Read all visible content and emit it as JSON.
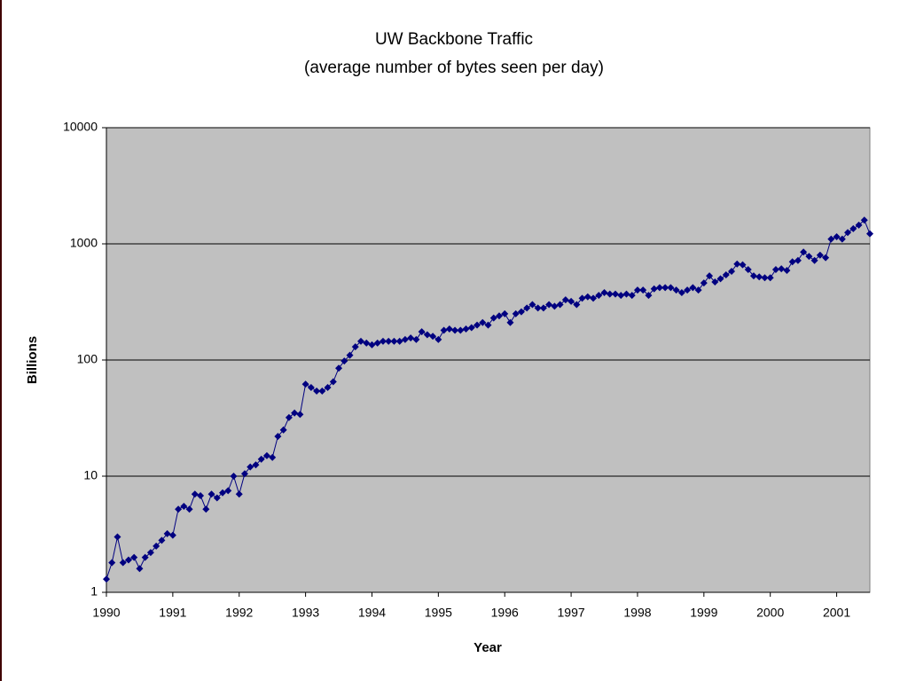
{
  "chart_data": {
    "type": "line",
    "title": "UW Backbone Traffic",
    "subtitle": "(average number of bytes seen per day)",
    "x_label": "Year",
    "y_label": "Billions",
    "log_y": true,
    "grid": true,
    "color": "#000080",
    "ylim": [
      1,
      10000
    ],
    "yticks": [
      1,
      10,
      100,
      1000,
      10000
    ],
    "categories": [
      "1990",
      null,
      null,
      null,
      null,
      null,
      null,
      null,
      null,
      null,
      null,
      null,
      "1991",
      null,
      null,
      null,
      null,
      null,
      null,
      null,
      null,
      null,
      null,
      null,
      "1992",
      null,
      null,
      null,
      null,
      null,
      null,
      null,
      null,
      null,
      null,
      null,
      "1993",
      null,
      null,
      null,
      null,
      null,
      null,
      null,
      null,
      null,
      null,
      null,
      "1994",
      null,
      null,
      null,
      null,
      null,
      null,
      null,
      null,
      null,
      null,
      null,
      "1995",
      null,
      null,
      null,
      null,
      null,
      null,
      null,
      null,
      null,
      null,
      null,
      "1996",
      null,
      null,
      null,
      null,
      null,
      null,
      null,
      null,
      null,
      null,
      null,
      "1997",
      null,
      null,
      null,
      null,
      null,
      null,
      null,
      null,
      null,
      null,
      null,
      "1998",
      null,
      null,
      null,
      null,
      null,
      null,
      null,
      null,
      null,
      null,
      null,
      "1999",
      null,
      null,
      null,
      null,
      null,
      null,
      null,
      null,
      null,
      null,
      null,
      "2000",
      null,
      null,
      null,
      null,
      null,
      null,
      null,
      null,
      null,
      null,
      null,
      "2001",
      null,
      null,
      null,
      null,
      null,
      null
    ],
    "values": [
      1.3,
      1.8,
      3.0,
      1.8,
      1.9,
      2.0,
      1.6,
      2.0,
      2.2,
      2.5,
      2.8,
      3.2,
      3.1,
      5.2,
      5.5,
      5.2,
      7.0,
      6.8,
      5.2,
      7.0,
      6.5,
      7.2,
      7.5,
      10,
      7.0,
      10.5,
      12,
      12.5,
      14,
      15,
      14.5,
      22,
      25,
      32,
      35,
      34,
      62,
      58,
      54,
      54,
      58,
      65,
      85,
      98,
      110,
      130,
      145,
      140,
      135,
      140,
      145,
      145,
      145,
      145,
      150,
      155,
      150,
      175,
      165,
      160,
      150,
      180,
      185,
      180,
      180,
      185,
      190,
      200,
      210,
      200,
      230,
      240,
      250,
      210,
      250,
      260,
      280,
      300,
      280,
      280,
      300,
      290,
      300,
      330,
      320,
      300,
      340,
      350,
      340,
      360,
      380,
      370,
      370,
      360,
      370,
      360,
      400,
      400,
      360,
      410,
      420,
      420,
      420,
      400,
      380,
      400,
      420,
      400,
      460,
      530,
      470,
      500,
      540,
      580,
      670,
      660,
      600,
      530,
      520,
      510,
      510,
      600,
      610,
      590,
      700,
      720,
      850,
      780,
      720,
      800,
      760,
      1100,
      1150,
      1100,
      1250,
      1350,
      1450,
      1600,
      1220
    ]
  }
}
